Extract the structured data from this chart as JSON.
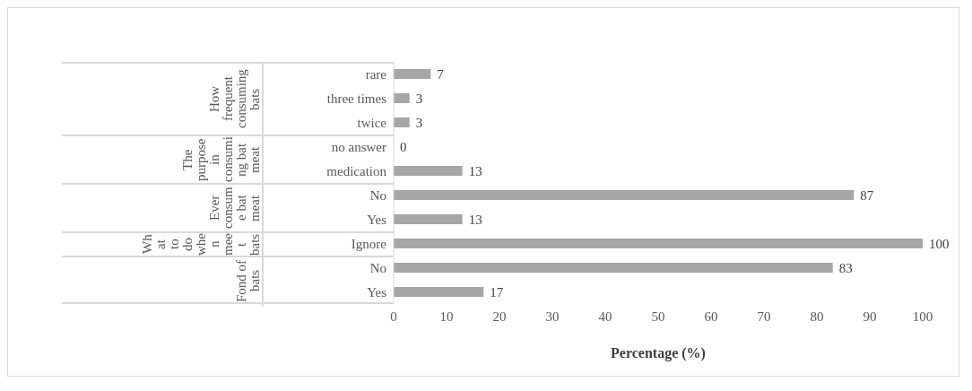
{
  "chart_data": {
    "type": "bar",
    "orientation": "horizontal",
    "categories": [
      "rare",
      "three times",
      "twice",
      "no answer",
      "medication",
      "No",
      "Yes",
      "Ignore",
      "No",
      "Yes"
    ],
    "values": [
      7,
      3,
      3,
      0,
      13,
      87,
      13,
      100,
      83,
      17
    ],
    "color": "#a6a6a6",
    "data_labels": true,
    "xlabel": "Percentage (%)",
    "xlim": [
      0,
      100
    ],
    "xticks": [
      0,
      10,
      20,
      30,
      40,
      50,
      60,
      70,
      80,
      90,
      100
    ],
    "grid": false,
    "legend": false,
    "annotations": [
      "How frequent consuming bats",
      "The purpose in consuming bat meat",
      "Ever consume bat meat",
      "What to do when meet bats",
      "Fond of bats"
    ]
  }
}
